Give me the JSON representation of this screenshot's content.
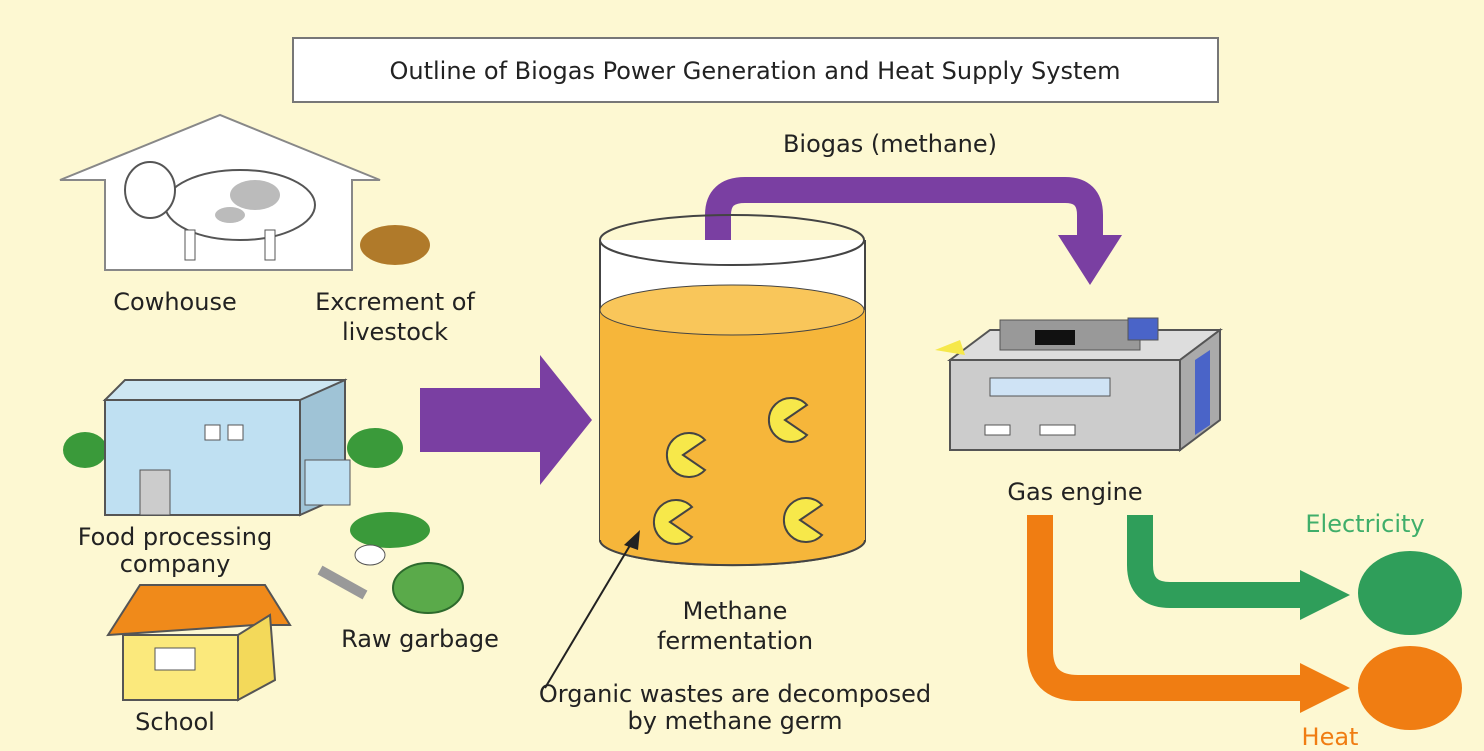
{
  "title": "Outline of Biogas Power Generation and Heat Supply System",
  "flows": {
    "biogas": "Biogas (methane)",
    "electricity": "Electricity",
    "heat": "Heat"
  },
  "nodes": {
    "cowhouse": [
      "Cowhouse"
    ],
    "excrement": [
      "Excrement of",
      "livestock"
    ],
    "food_company": [
      "Food processing",
      "company"
    ],
    "school": [
      "School"
    ],
    "raw_garbage": [
      "Raw garbage"
    ],
    "fermentation": [
      "Methane",
      "fermentation"
    ],
    "gas_engine": [
      "Gas engine"
    ]
  },
  "annotation": [
    "Organic wastes are decomposed",
    "by methane germ"
  ]
}
